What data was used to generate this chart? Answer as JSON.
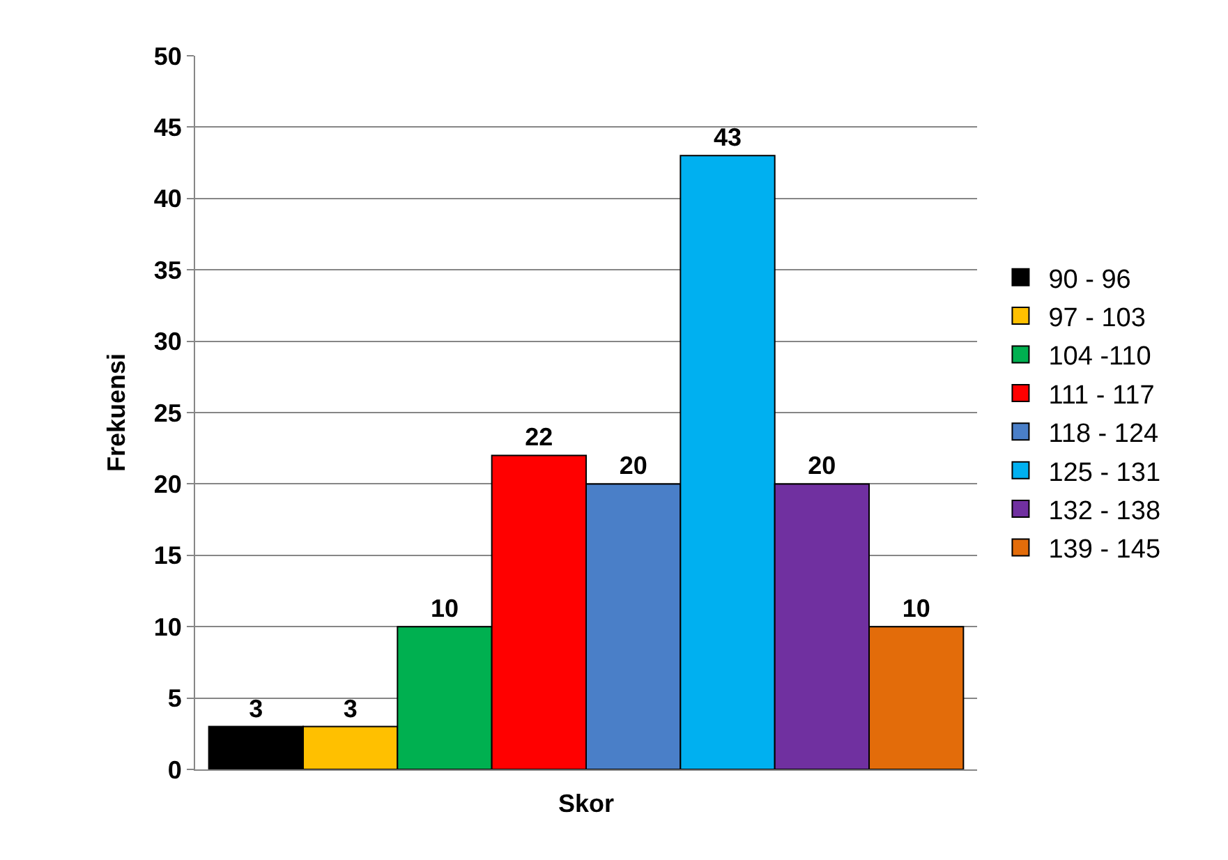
{
  "chart_data": {
    "type": "bar",
    "xlabel": "Skor",
    "ylabel": "Frekuensi",
    "categories": [
      null
    ],
    "series": [
      {
        "name": "90 - 96",
        "color": "#000000",
        "values": [
          3
        ]
      },
      {
        "name": "97 - 103",
        "color": "#ffc000",
        "values": [
          3
        ]
      },
      {
        "name": "104 -110",
        "color": "#00b050",
        "values": [
          10
        ]
      },
      {
        "name": "111 - 117",
        "color": "#ff0000",
        "values": [
          22
        ]
      },
      {
        "name": "118 - 124",
        "color": "#4a7fc8",
        "values": [
          20
        ]
      },
      {
        "name": "125 - 131",
        "color": "#00b0f0",
        "values": [
          43
        ]
      },
      {
        "name": "132 - 138",
        "color": "#7030a0",
        "values": [
          20
        ]
      },
      {
        "name": "139 - 145",
        "color": "#e36c0a",
        "values": [
          10
        ]
      }
    ],
    "ylim": [
      0,
      50
    ],
    "yticks": [
      0,
      5,
      10,
      15,
      20,
      25,
      30,
      35,
      40,
      45,
      50
    ],
    "grid": "y",
    "legend": "right",
    "data_labels": true
  }
}
